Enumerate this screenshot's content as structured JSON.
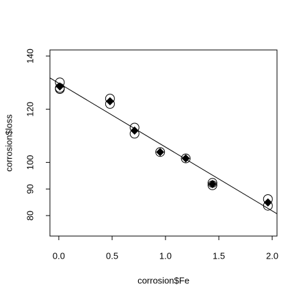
{
  "chart_data": {
    "type": "scatter",
    "x_label": "corrosion$Fe",
    "y_label": "corrosion$loss",
    "xlim": [
      -0.083,
      2.045
    ],
    "ylim": [
      72.3,
      142.3
    ],
    "xticks": [
      {
        "value": 0,
        "label": "0.0"
      },
      {
        "value": 0.5,
        "label": "0.5"
      },
      {
        "value": 1,
        "label": "1.0"
      },
      {
        "value": 1.5,
        "label": "1.5"
      },
      {
        "value": 2,
        "label": "2.0"
      }
    ],
    "yticks": [
      80,
      90,
      100,
      120,
      140
    ],
    "series": [
      {
        "marker": "circle",
        "color": "#000000",
        "x": [
          0.01,
          0.48,
          0.71,
          0.95,
          1.19,
          0.01,
          0.48,
          1.44,
          0.71,
          1.96,
          0.01,
          1.44,
          1.96
        ],
        "values": [
          127.6,
          124.0,
          110.8,
          103.9,
          101.5,
          130.1,
          122.0,
          92.3,
          113.1,
          83.7,
          128.0,
          91.4,
          86.2
        ]
      },
      {
        "marker": "diamond",
        "color": "#000000",
        "x": [
          0.01,
          0.48,
          0.71,
          0.95,
          1.19,
          1.44,
          1.96
        ],
        "values": [
          128.57,
          123.0,
          111.95,
          103.9,
          101.5,
          91.85,
          84.95
        ]
      }
    ],
    "fit": {
      "intercept": 129.79,
      "slope": -24.02,
      "color": "#000000"
    }
  }
}
